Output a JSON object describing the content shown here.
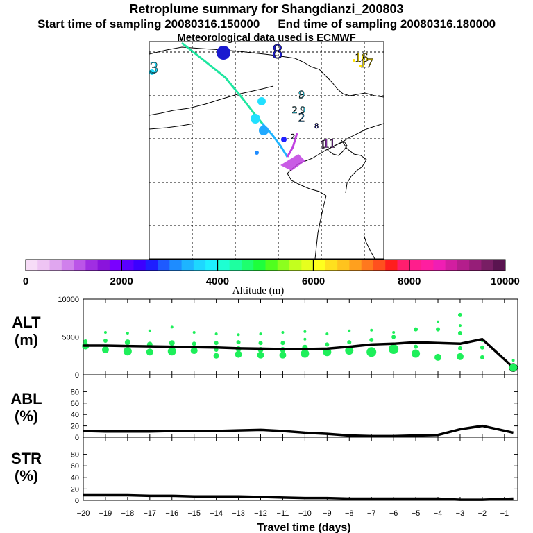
{
  "header": {
    "title": "Retroplume summary for Shangdianzi_200803",
    "start_label": "Start time of sampling 20080316.150000",
    "end_label": "End time of sampling 20080316.180000",
    "met_label": "Meteorological data used is ECMWF"
  },
  "map": {
    "labels": [
      {
        "text": "8",
        "lon": 117.8,
        "lat": 48.8,
        "size": 16,
        "color": "#1a1ad0"
      },
      {
        "text": "3",
        "lon": 96.3,
        "lat": 46.5,
        "size": 13,
        "color": "#22e0ff"
      },
      {
        "text": "16",
        "lon": 132.4,
        "lat": 48.0,
        "size": 10,
        "color": "#ffe400"
      },
      {
        "text": "17",
        "lon": 133.3,
        "lat": 47.2,
        "size": 10,
        "color": "#ffe400"
      },
      {
        "text": "9",
        "lon": 122.0,
        "lat": 42.7,
        "size": 9,
        "color": "#22e0ff"
      },
      {
        "text": "2",
        "lon": 120.8,
        "lat": 40.5,
        "size": 8,
        "color": "#22e0ff"
      },
      {
        "text": "9",
        "lon": 122.2,
        "lat": 40.5,
        "size": 8,
        "color": "#22e0ff"
      },
      {
        "text": "2",
        "lon": 122.0,
        "lat": 39.3,
        "size": 10,
        "color": "#22aaff"
      },
      {
        "text": "8",
        "lon": 124.6,
        "lat": 38.2,
        "size": 6,
        "color": "#2020ff"
      },
      {
        "text": "2",
        "lon": 120.5,
        "lat": 36.6,
        "size": 6,
        "color": "#1e8cff"
      },
      {
        "text": "1",
        "lon": 125.7,
        "lat": 35.4,
        "size": 10,
        "color": "#cc44ff"
      },
      {
        "text": "11",
        "lon": 126.8,
        "lat": 35.6,
        "size": 10,
        "color": "#cc44ff"
      }
    ]
  },
  "colorbar": {
    "title": "Altitude (m)",
    "ticks": [
      "0",
      "2000",
      "4000",
      "6000",
      "8000",
      "10000"
    ],
    "colors": [
      "#f7dcf7",
      "#eec4f3",
      "#e0a6ef",
      "#d080ec",
      "#bb55e8",
      "#a02ee2",
      "#8a14dc",
      "#7a00ff",
      "#5a00ff",
      "#3c00ff",
      "#1e1eff",
      "#1e5aff",
      "#1e8cff",
      "#1eb4ff",
      "#1ed7ff",
      "#1ef0ff",
      "#1effd2",
      "#1effa0",
      "#1eff6e",
      "#1eff3c",
      "#50ff1e",
      "#8cff1e",
      "#c3ff1e",
      "#e6ff1e",
      "#ffff1e",
      "#ffe01e",
      "#ffc31e",
      "#ffa01e",
      "#ff781e",
      "#ff501e",
      "#ff1e1e",
      "#ff1e6e",
      "#ff1e8c",
      "#ff1ea0",
      "#f01eb4",
      "#d21ea0",
      "#b41e8c",
      "#961e78",
      "#781e64",
      "#5a1450"
    ]
  },
  "chart_data": [
    {
      "type": "line",
      "panel": "ALT",
      "title": "ALT",
      "ylabel": "(m)",
      "ylim": [
        0,
        10000
      ],
      "yticks": [
        "0",
        "5000",
        "10000"
      ],
      "x": [
        -20,
        -19,
        -18,
        -17,
        -16,
        -15,
        -14,
        -13,
        -12,
        -11,
        -10,
        -9,
        -8,
        -7,
        -6,
        -5,
        -4,
        -3,
        -2,
        -1
      ],
      "xlim": [
        -20,
        -0.4
      ],
      "series": [
        {
          "name": "median altitude",
          "x": [
            -20,
            -19,
            -18,
            -17,
            -16,
            -15,
            -14,
            -13,
            -12,
            -11,
            -10,
            -9,
            -8,
            -7,
            -6,
            -5,
            -4,
            -3,
            -2,
            -0.6
          ],
          "values": [
            3850,
            3850,
            3800,
            3750,
            3700,
            3650,
            3600,
            3500,
            3450,
            3400,
            3400,
            3450,
            3700,
            4000,
            4100,
            4300,
            4200,
            4100,
            4700,
            950
          ]
        }
      ],
      "points": [
        {
          "x": -19.9,
          "y": 3800,
          "r": 5
        },
        {
          "x": -19.9,
          "y": 4400,
          "r": 3
        },
        {
          "x": -19.0,
          "y": 3300,
          "r": 5
        },
        {
          "x": -19.0,
          "y": 4500,
          "r": 3
        },
        {
          "x": -19.0,
          "y": 5600,
          "r": 2
        },
        {
          "x": -18.0,
          "y": 3100,
          "r": 6
        },
        {
          "x": -18.0,
          "y": 4300,
          "r": 4
        },
        {
          "x": -18.0,
          "y": 5500,
          "r": 2
        },
        {
          "x": -17.0,
          "y": 3000,
          "r": 5
        },
        {
          "x": -17.0,
          "y": 4000,
          "r": 4
        },
        {
          "x": -17.0,
          "y": 5800,
          "r": 2
        },
        {
          "x": -16.0,
          "y": 3100,
          "r": 6
        },
        {
          "x": -16.0,
          "y": 4200,
          "r": 4
        },
        {
          "x": -16.0,
          "y": 6300,
          "r": 2
        },
        {
          "x": -15.0,
          "y": 3200,
          "r": 5
        },
        {
          "x": -15.0,
          "y": 4100,
          "r": 3
        },
        {
          "x": -15.0,
          "y": 5600,
          "r": 2
        },
        {
          "x": -14.0,
          "y": 2500,
          "r": 4
        },
        {
          "x": -14.0,
          "y": 3300,
          "r": 3
        },
        {
          "x": -14.0,
          "y": 4200,
          "r": 3
        },
        {
          "x": -14.0,
          "y": 5400,
          "r": 2
        },
        {
          "x": -13.0,
          "y": 2700,
          "r": 5
        },
        {
          "x": -13.0,
          "y": 3400,
          "r": 4
        },
        {
          "x": -13.0,
          "y": 4300,
          "r": 3
        },
        {
          "x": -13.0,
          "y": 5300,
          "r": 2
        },
        {
          "x": -12.0,
          "y": 2600,
          "r": 5
        },
        {
          "x": -12.0,
          "y": 3300,
          "r": 4
        },
        {
          "x": -12.0,
          "y": 4200,
          "r": 3
        },
        {
          "x": -12.0,
          "y": 5400,
          "r": 2
        },
        {
          "x": -11.0,
          "y": 2600,
          "r": 5
        },
        {
          "x": -11.0,
          "y": 3300,
          "r": 4
        },
        {
          "x": -11.0,
          "y": 4200,
          "r": 3
        },
        {
          "x": -11.0,
          "y": 5600,
          "r": 2
        },
        {
          "x": -10.0,
          "y": 2800,
          "r": 6
        },
        {
          "x": -10.0,
          "y": 3600,
          "r": 4
        },
        {
          "x": -10.0,
          "y": 4700,
          "r": 2
        },
        {
          "x": -10.0,
          "y": 5700,
          "r": 2
        },
        {
          "x": -9.0,
          "y": 3000,
          "r": 6
        },
        {
          "x": -9.0,
          "y": 4000,
          "r": 3
        },
        {
          "x": -9.0,
          "y": 5400,
          "r": 2
        },
        {
          "x": -8.0,
          "y": 3200,
          "r": 6
        },
        {
          "x": -8.0,
          "y": 4300,
          "r": 3
        },
        {
          "x": -8.0,
          "y": 5800,
          "r": 2
        },
        {
          "x": -7.0,
          "y": 3000,
          "r": 7
        },
        {
          "x": -7.0,
          "y": 4600,
          "r": 3
        },
        {
          "x": -7.0,
          "y": 5900,
          "r": 2
        },
        {
          "x": -6.0,
          "y": 3400,
          "r": 7
        },
        {
          "x": -6.0,
          "y": 5000,
          "r": 3
        },
        {
          "x": -6.0,
          "y": 5600,
          "r": 2
        },
        {
          "x": -5.0,
          "y": 2800,
          "r": 6
        },
        {
          "x": -5.0,
          "y": 3700,
          "r": 3
        },
        {
          "x": -5.0,
          "y": 6000,
          "r": 3
        },
        {
          "x": -4.0,
          "y": 2300,
          "r": 5
        },
        {
          "x": -4.0,
          "y": 6000,
          "r": 3
        },
        {
          "x": -4.0,
          "y": 7000,
          "r": 2
        },
        {
          "x": -3.0,
          "y": 2400,
          "r": 5
        },
        {
          "x": -3.0,
          "y": 3500,
          "r": 3
        },
        {
          "x": -3.0,
          "y": 5500,
          "r": 3
        },
        {
          "x": -3.0,
          "y": 6500,
          "r": 2
        },
        {
          "x": -3.0,
          "y": 7900,
          "r": 3
        },
        {
          "x": -2.0,
          "y": 2300,
          "r": 3
        },
        {
          "x": -2.0,
          "y": 3600,
          "r": 3
        },
        {
          "x": -2.0,
          "y": 4500,
          "r": 2
        },
        {
          "x": -0.6,
          "y": 950,
          "r": 6
        },
        {
          "x": -0.6,
          "y": 1900,
          "r": 2
        }
      ]
    },
    {
      "type": "line",
      "panel": "ABL",
      "title": "ABL",
      "ylabel": "(%)",
      "ylim": [
        0,
        100
      ],
      "yticks": [
        "0",
        "20",
        "40",
        "60",
        "80"
      ],
      "series": [
        {
          "name": "ABL fraction",
          "x": [
            -20,
            -19,
            -18,
            -17,
            -16,
            -15,
            -14,
            -13,
            -12,
            -11,
            -10,
            -9,
            -8,
            -7,
            -6,
            -5,
            -4,
            -3,
            -2,
            -0.6
          ],
          "values": [
            11,
            10,
            10,
            10,
            11,
            11,
            11,
            12,
            13,
            11,
            8,
            6,
            3,
            2,
            2,
            3,
            4,
            14,
            20,
            8
          ]
        }
      ]
    },
    {
      "type": "line",
      "panel": "STR",
      "title": "STR",
      "ylabel": "(%)",
      "ylim": [
        0,
        100
      ],
      "yticks": [
        "0",
        "20",
        "40",
        "60",
        "80"
      ],
      "xlabel": "Travel time (days)",
      "xticks": [
        "−20",
        "−19",
        "−18",
        "−17",
        "−16",
        "−15",
        "−14",
        "−13",
        "−12",
        "−11",
        "−10",
        "−9",
        "−8",
        "−7",
        "−6",
        "−5",
        "−4",
        "−3",
        "−2",
        "−1"
      ],
      "series": [
        {
          "name": "STR fraction",
          "x": [
            -20,
            -19,
            -18,
            -17,
            -16,
            -15,
            -14,
            -13,
            -12,
            -11,
            -10,
            -9,
            -8,
            -7,
            -6,
            -5,
            -4,
            -3,
            -2,
            -0.6
          ],
          "values": [
            9,
            9,
            9,
            8,
            8,
            7,
            7,
            7,
            6,
            5,
            4,
            4,
            3,
            3,
            3,
            3,
            3,
            1,
            1,
            3
          ]
        }
      ]
    }
  ]
}
